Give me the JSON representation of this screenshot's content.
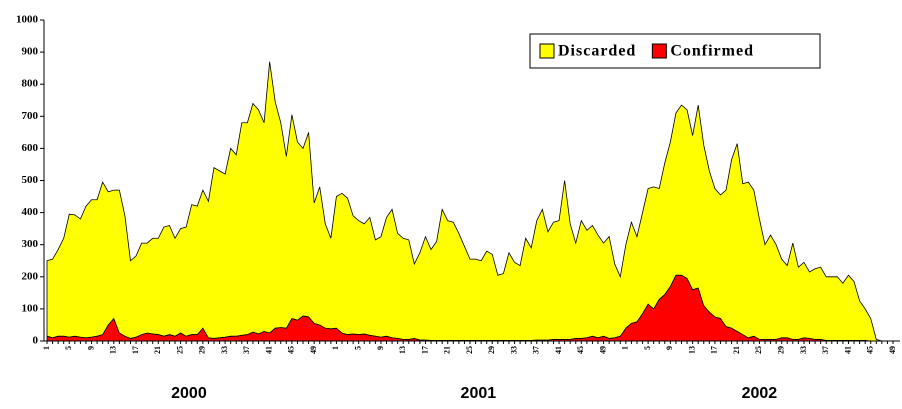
{
  "chart_data": {
    "type": "stacked_area",
    "categories": [
      "1",
      null,
      null,
      null,
      "5",
      null,
      null,
      null,
      "9",
      null,
      null,
      null,
      "13",
      null,
      null,
      null,
      "17",
      null,
      null,
      null,
      "21",
      null,
      null,
      null,
      "25",
      null,
      null,
      null,
      "29",
      null,
      null,
      null,
      "33",
      null,
      null,
      null,
      "37",
      null,
      null,
      null,
      "41",
      null,
      null,
      null,
      "45",
      null,
      null,
      null,
      "49",
      null,
      null,
      null,
      "1",
      null,
      null,
      null,
      "5",
      null,
      null,
      null,
      "9",
      null,
      null,
      null,
      "13",
      null,
      null,
      null,
      "17",
      null,
      null,
      null,
      "21",
      null,
      null,
      null,
      "25",
      null,
      null,
      null,
      "29",
      null,
      null,
      null,
      "33",
      null,
      null,
      null,
      "37",
      null,
      null,
      null,
      "41",
      null,
      null,
      null,
      "45",
      null,
      null,
      null,
      "49",
      null,
      null,
      null,
      "1",
      null,
      null,
      null,
      "5",
      null,
      null,
      null,
      "9",
      null,
      null,
      null,
      "13",
      null,
      null,
      null,
      "17",
      null,
      null,
      null,
      "21",
      null,
      null,
      null,
      "25",
      null,
      null,
      null,
      "29",
      null,
      null,
      null,
      "33",
      null,
      null,
      null,
      "37",
      null,
      null,
      null,
      "41",
      null,
      null,
      null,
      "45",
      null,
      null,
      null,
      "49"
    ],
    "years": [
      "2000",
      "2001",
      "2002"
    ],
    "series": [
      {
        "name": "Confirmed",
        "color": "#ff0000",
        "values": [
          15,
          10,
          15,
          15,
          12,
          15,
          12,
          10,
          12,
          15,
          20,
          50,
          70,
          25,
          15,
          8,
          12,
          20,
          25,
          22,
          20,
          15,
          20,
          15,
          25,
          15,
          20,
          20,
          40,
          10,
          8,
          10,
          12,
          15,
          15,
          18,
          20,
          28,
          22,
          30,
          25,
          40,
          42,
          40,
          70,
          65,
          78,
          75,
          55,
          50,
          40,
          38,
          40,
          25,
          20,
          22,
          20,
          22,
          18,
          15,
          12,
          15,
          10,
          8,
          5,
          5,
          8,
          3,
          3,
          2,
          2,
          2,
          2,
          2,
          2,
          2,
          2,
          2,
          2,
          2,
          2,
          2,
          2,
          2,
          2,
          2,
          2,
          2,
          3,
          3,
          3,
          5,
          5,
          5,
          5,
          8,
          8,
          10,
          15,
          10,
          15,
          8,
          10,
          15,
          40,
          55,
          60,
          85,
          115,
          100,
          130,
          145,
          170,
          205,
          205,
          195,
          160,
          165,
          110,
          90,
          75,
          70,
          45,
          40,
          30,
          20,
          10,
          15,
          5,
          5,
          5,
          5,
          10,
          10,
          5,
          5,
          10,
          8,
          5,
          5,
          2,
          2,
          2,
          2,
          2,
          2,
          2,
          2,
          0,
          0,
          0,
          0,
          0
        ]
      },
      {
        "name": "Discarded",
        "color": "#ffff00",
        "values": [
          235,
          245,
          270,
          305,
          383,
          378,
          368,
          410,
          428,
          425,
          475,
          415,
          400,
          445,
          375,
          242,
          253,
          285,
          280,
          298,
          300,
          340,
          340,
          305,
          325,
          340,
          405,
          400,
          430,
          425,
          532,
          520,
          508,
          585,
          565,
          662,
          660,
          712,
          698,
          650,
          845,
          705,
          638,
          535,
          635,
          555,
          522,
          575,
          375,
          430,
          325,
          282,
          410,
          435,
          425,
          368,
          355,
          343,
          367,
          300,
          313,
          370,
          400,
          327,
          315,
          310,
          232,
          272,
          322,
          283,
          308,
          408,
          373,
          368,
          333,
          293,
          253,
          253,
          248,
          278,
          268,
          203,
          208,
          273,
          243,
          233,
          318,
          288,
          372,
          407,
          337,
          365,
          370,
          495,
          360,
          297,
          367,
          335,
          345,
          320,
          290,
          317,
          230,
          185,
          260,
          315,
          265,
          315,
          360,
          380,
          345,
          410,
          450,
          505,
          530,
          525,
          480,
          570,
          500,
          440,
          400,
          385,
          425,
          525,
          585,
          470,
          485,
          455,
          375,
          295,
          325,
          295,
          245,
          225,
          300,
          225,
          235,
          207,
          220,
          225,
          198,
          198,
          198,
          178,
          203,
          183,
          123,
          98,
          70,
          5,
          0,
          0,
          0
        ]
      }
    ],
    "ylim": [
      0,
      1000
    ],
    "yticks": [
      0,
      100,
      200,
      300,
      400,
      500,
      600,
      700,
      800,
      900,
      1000
    ],
    "legend": "top-right"
  }
}
